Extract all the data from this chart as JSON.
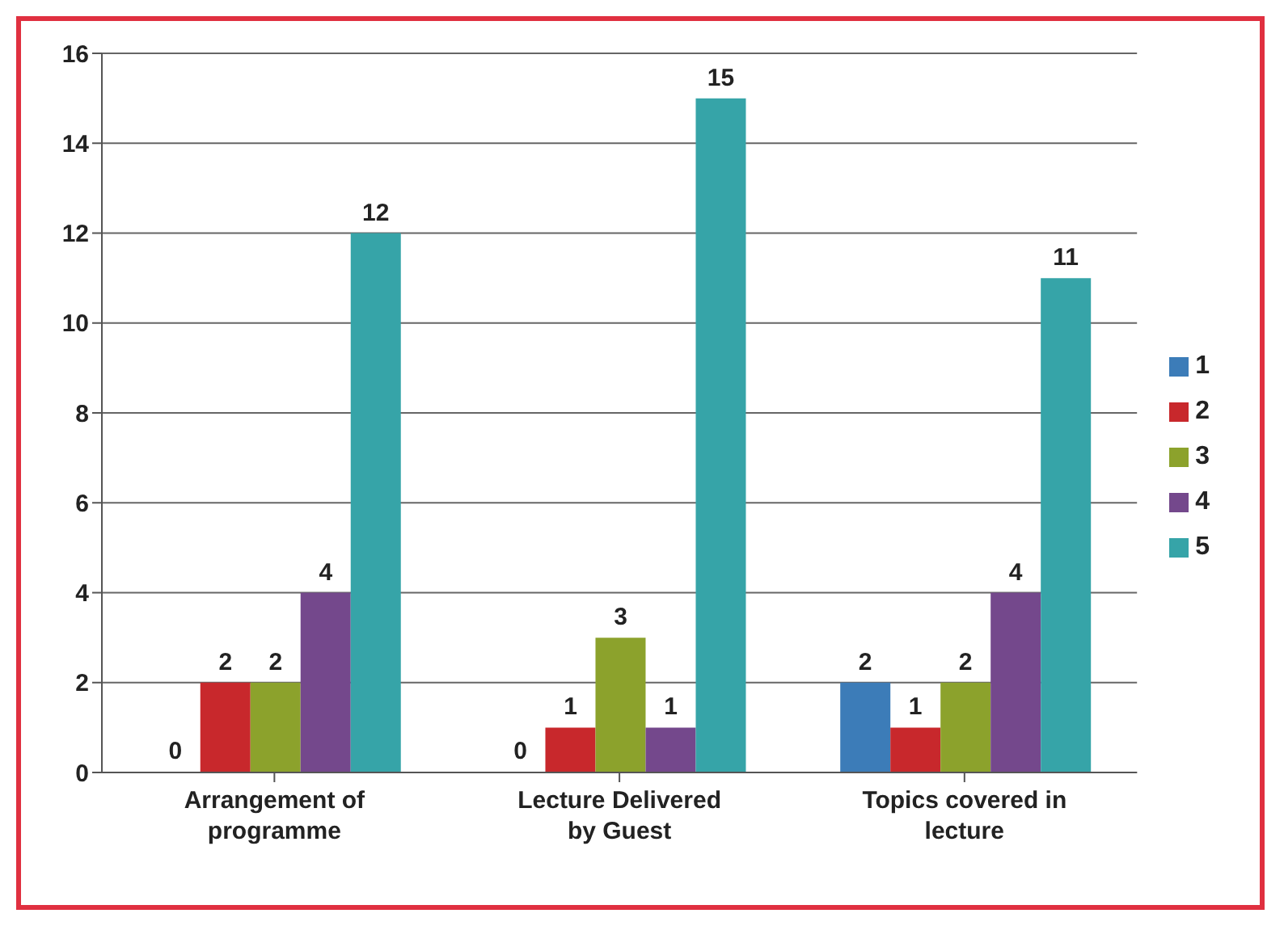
{
  "chart_data": {
    "type": "bar",
    "categories": [
      "Arrangement of programme",
      "Lecture Delivered by Guest",
      "Topics covered in lecture"
    ],
    "series": [
      {
        "name": "1",
        "color": "#3c7cb8",
        "values": [
          0,
          0,
          2
        ]
      },
      {
        "name": "2",
        "color": "#c8282c",
        "values": [
          2,
          1,
          1
        ]
      },
      {
        "name": "3",
        "color": "#8ca22c",
        "values": [
          2,
          3,
          2
        ]
      },
      {
        "name": "4",
        "color": "#74488c",
        "values": [
          4,
          1,
          4
        ]
      },
      {
        "name": "5",
        "color": "#36a4a8",
        "values": [
          12,
          15,
          11
        ]
      }
    ],
    "ylim": [
      0,
      16
    ],
    "yticks": [
      0,
      2,
      4,
      6,
      8,
      10,
      12,
      14,
      16
    ],
    "grid": "y",
    "legend": "right",
    "data_labels": true
  }
}
